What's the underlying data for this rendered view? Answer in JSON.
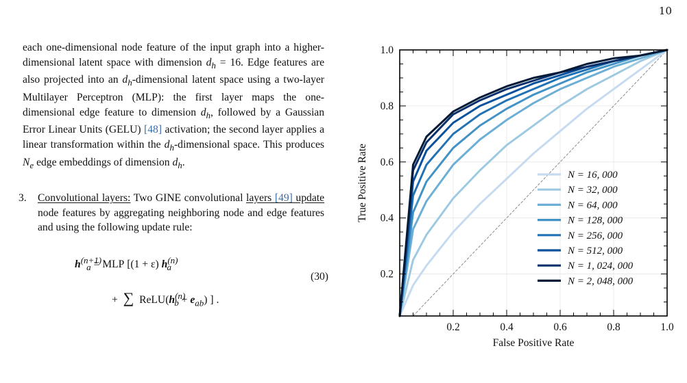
{
  "page": {
    "number": "10"
  },
  "paragraph1": {
    "text_a": "each one-dimensional node feature of the input graph into a higher-dimensional latent space with dimension ",
    "dim_symbol": "d",
    "dim_sub": "h",
    "dim_value": " = 16. Edge features are also projected into an ",
    "text_b": "-dimensional latent space using a two-layer Multilayer Perceptron (MLP): the first layer maps the one-dimensional edge feature to dimension ",
    "text_c": ", followed by a Gaussian Error Linear Units (GELU) ",
    "cite_gelu": "[48]",
    "text_d": " activation; the second layer applies a linear transformation within the ",
    "text_e": "-dimensional space. This produces ",
    "ne_symbol": "N",
    "ne_sub": "e",
    "text_f": " edge embeddings of dimension ",
    "text_g": "."
  },
  "list_item_3": {
    "number": "3.",
    "heading": "Convolutional layers:",
    "text_a": " Two GINE convolutional ",
    "underlined_start": "layers ",
    "cite_gine": "[49]",
    "underlined_end": " update",
    "text_b": " node features by aggregating neighboring node and edge features and using the following update rule:"
  },
  "equation": {
    "lhs": "h",
    "lhs_sub": "a",
    "lhs_sup": "(n+1)",
    "eq_mlp": "= MLP",
    "paren_open": "[(1 + ε)",
    "term_h": "h",
    "term_h_sub": "a",
    "term_h_sup": "(n)",
    "plus": "+",
    "sum": "∑",
    "relu": "ReLU",
    "inner_h": "h",
    "inner_h_sub": "b",
    "inner_h_sup": "(n)",
    "inner_plus": " + ",
    "inner_e": "e",
    "inner_e_sub": "ab",
    "close": "] .",
    "number": "(30)"
  },
  "chart_data": {
    "type": "line",
    "title": "",
    "xlabel": "False Positive Rate",
    "ylabel": "True Positive Rate",
    "xlim": [
      0.0,
      1.0
    ],
    "ylim": [
      0.05,
      1.0
    ],
    "xticks": [
      "0.2",
      "0.4",
      "0.6",
      "0.8",
      "1.0"
    ],
    "xtick_values": [
      0.2,
      0.4,
      0.6,
      0.8,
      1.0
    ],
    "yticks": [
      "0.2",
      "0.4",
      "0.6",
      "0.8",
      "1.0"
    ],
    "ytick_values": [
      0.2,
      0.4,
      0.6,
      0.8,
      1.0
    ],
    "grid": true,
    "legend_position": "lower-right",
    "diagonal": {
      "x": [
        0.0,
        1.0
      ],
      "y": [
        0.0,
        1.0
      ],
      "color": "#808080"
    },
    "series": [
      {
        "name": "N = 16, 000",
        "color": "#c6dbef",
        "x": [
          0.0,
          0.05,
          0.1,
          0.2,
          0.3,
          0.4,
          0.5,
          0.6,
          0.7,
          0.8,
          0.9,
          1.0
        ],
        "y": [
          0.05,
          0.16,
          0.23,
          0.35,
          0.45,
          0.54,
          0.63,
          0.71,
          0.79,
          0.86,
          0.93,
          1.0
        ]
      },
      {
        "name": "N = 32, 000",
        "color": "#9ecae1",
        "x": [
          0.0,
          0.05,
          0.1,
          0.2,
          0.3,
          0.4,
          0.5,
          0.6,
          0.7,
          0.8,
          0.9,
          1.0
        ],
        "y": [
          0.05,
          0.25,
          0.34,
          0.47,
          0.57,
          0.66,
          0.73,
          0.8,
          0.86,
          0.91,
          0.96,
          1.0
        ]
      },
      {
        "name": "N = 64, 000",
        "color": "#6baed6",
        "x": [
          0.0,
          0.05,
          0.1,
          0.2,
          0.3,
          0.4,
          0.5,
          0.6,
          0.7,
          0.8,
          0.9,
          1.0
        ],
        "y": [
          0.05,
          0.36,
          0.46,
          0.59,
          0.68,
          0.75,
          0.81,
          0.86,
          0.9,
          0.94,
          0.97,
          1.0
        ]
      },
      {
        "name": "N = 128, 000",
        "color": "#4292c6",
        "x": [
          0.0,
          0.05,
          0.1,
          0.2,
          0.3,
          0.4,
          0.5,
          0.6,
          0.7,
          0.8,
          0.9,
          1.0
        ],
        "y": [
          0.05,
          0.42,
          0.53,
          0.65,
          0.73,
          0.79,
          0.84,
          0.88,
          0.92,
          0.95,
          0.98,
          1.0
        ]
      },
      {
        "name": "N = 256, 000",
        "color": "#2171b5",
        "x": [
          0.0,
          0.05,
          0.1,
          0.2,
          0.3,
          0.4,
          0.5,
          0.6,
          0.7,
          0.8,
          0.9,
          1.0
        ],
        "y": [
          0.05,
          0.48,
          0.59,
          0.7,
          0.77,
          0.82,
          0.86,
          0.9,
          0.93,
          0.96,
          0.98,
          1.0
        ]
      },
      {
        "name": "N = 512, 000",
        "color": "#08519c",
        "x": [
          0.0,
          0.05,
          0.1,
          0.2,
          0.3,
          0.4,
          0.5,
          0.6,
          0.7,
          0.8,
          0.9,
          1.0
        ],
        "y": [
          0.05,
          0.53,
          0.64,
          0.74,
          0.8,
          0.84,
          0.88,
          0.91,
          0.94,
          0.96,
          0.98,
          1.0
        ]
      },
      {
        "name": "N = 1, 024, 000",
        "color": "#08306b",
        "x": [
          0.0,
          0.05,
          0.1,
          0.2,
          0.3,
          0.4,
          0.5,
          0.6,
          0.7,
          0.8,
          0.9,
          1.0
        ],
        "y": [
          0.05,
          0.57,
          0.67,
          0.77,
          0.82,
          0.86,
          0.89,
          0.92,
          0.94,
          0.96,
          0.98,
          1.0
        ]
      },
      {
        "name": "N = 2, 048, 000",
        "color": "#041a36",
        "x": [
          0.0,
          0.05,
          0.1,
          0.2,
          0.3,
          0.4,
          0.5,
          0.6,
          0.7,
          0.8,
          0.9,
          1.0
        ],
        "y": [
          0.05,
          0.59,
          0.69,
          0.78,
          0.83,
          0.87,
          0.9,
          0.92,
          0.95,
          0.97,
          0.98,
          1.0
        ]
      }
    ]
  }
}
